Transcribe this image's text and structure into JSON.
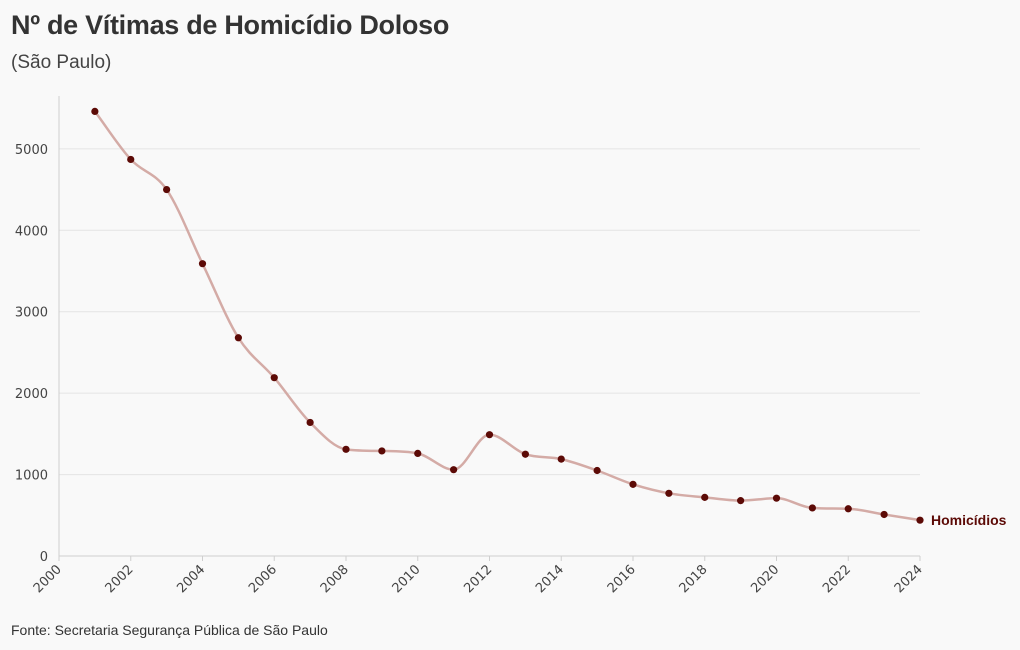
{
  "title": "Nº de Vítimas de Homicídio Doloso",
  "subtitle": "(São Paulo)",
  "caption": "Fonte: Secretaria Segurança Pública de São Paulo",
  "colors": {
    "background": "#f9f9f9",
    "line": "#d4aba6",
    "point": "#5c0a06",
    "label": "#5c0a06",
    "grid": "#e4e4e4"
  },
  "chart_data": {
    "type": "line",
    "title": "Nº de Vítimas de Homicídio Doloso",
    "subtitle": "(São Paulo)",
    "xlabel": "",
    "ylabel": "",
    "xlim": [
      2000,
      2024
    ],
    "ylim": [
      0,
      5600
    ],
    "x_ticks": [
      2000,
      2002,
      2004,
      2006,
      2008,
      2010,
      2012,
      2014,
      2016,
      2018,
      2020,
      2022,
      2024
    ],
    "y_ticks": [
      0,
      1000,
      2000,
      3000,
      4000,
      5000
    ],
    "grid": "horizontal",
    "legend": "none",
    "x": [
      2001,
      2002,
      2003,
      2004,
      2005,
      2006,
      2007,
      2008,
      2009,
      2010,
      2011,
      2012,
      2013,
      2014,
      2015,
      2016,
      2017,
      2018,
      2019,
      2020,
      2021,
      2022,
      2023,
      2024
    ],
    "series": [
      {
        "name": "Homicídios",
        "values": [
          5460,
          4870,
          4500,
          3590,
          2680,
          2190,
          1640,
          1310,
          1290,
          1260,
          1060,
          1490,
          1250,
          1190,
          1050,
          880,
          770,
          720,
          680,
          710,
          590,
          580,
          510,
          440
        ]
      }
    ]
  }
}
